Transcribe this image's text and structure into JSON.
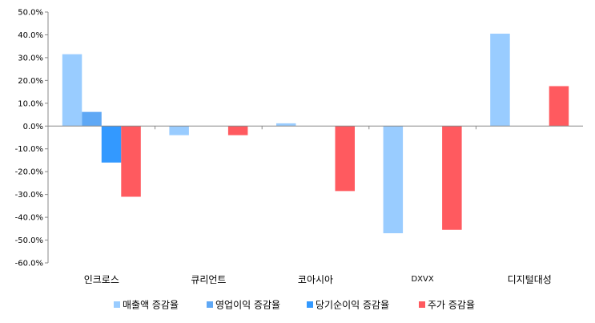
{
  "chart_data": {
    "type": "bar",
    "categories": [
      "인크로스",
      "큐리언트",
      "코아시아",
      "DXVX",
      "디지털대성"
    ],
    "series": [
      {
        "name": "매출액 증감율",
        "color": "#99ccff",
        "values": [
          31.5,
          -4.0,
          1.2,
          -47.0,
          40.5
        ]
      },
      {
        "name": "영업이익 증감율",
        "color": "#5fa8f5",
        "values": [
          6.2,
          0,
          0,
          0,
          0
        ]
      },
      {
        "name": "당기순이익 증감율",
        "color": "#3399ff",
        "values": [
          -16.0,
          0,
          0,
          0,
          0
        ]
      },
      {
        "name": "주가 증감율",
        "color": "#ff5a5f",
        "values": [
          -31.0,
          -4.0,
          -28.5,
          -45.5,
          17.5
        ]
      }
    ],
    "ylim": [
      -60,
      50
    ],
    "yticks": [
      50,
      40,
      30,
      20,
      10,
      0,
      -10,
      -20,
      -30,
      -40,
      -50,
      -60
    ],
    "ytick_labels": [
      "50.0%",
      "40.0%",
      "30.0%",
      "20.0%",
      "10.0%",
      "0.0%",
      "-10.0%",
      "-20.0%",
      "-30.0%",
      "-40.0%",
      "-50.0%",
      "-60.0%"
    ],
    "grid": false,
    "legend_position": "bottom"
  }
}
